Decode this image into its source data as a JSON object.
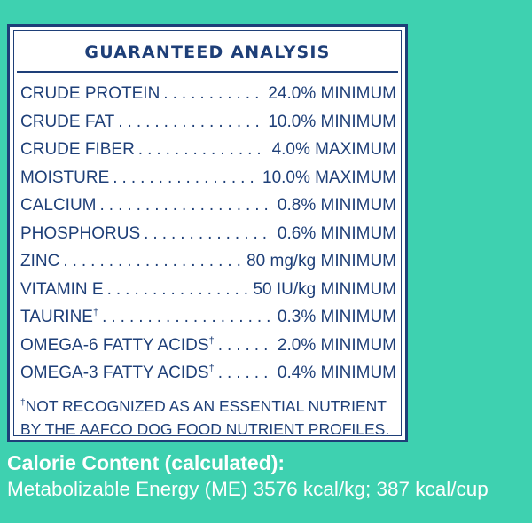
{
  "label": {
    "title": "GUARANTEED ANALYSIS",
    "rows": [
      {
        "name": "CRUDE PROTEIN",
        "mark": "",
        "value": "24.0% MINIMUM"
      },
      {
        "name": "CRUDE FAT",
        "mark": "",
        "value": "10.0% MINIMUM"
      },
      {
        "name": "CRUDE FIBER",
        "mark": "",
        "value": "4.0% MAXIMUM"
      },
      {
        "name": "MOISTURE",
        "mark": "",
        "value": "10.0% MAXIMUM"
      },
      {
        "name": "CALCIUM",
        "mark": "",
        "value": "0.8% MINIMUM"
      },
      {
        "name": "PHOSPHORUS",
        "mark": "",
        "value": "0.6% MINIMUM"
      },
      {
        "name": "ZINC",
        "mark": "",
        "value": "80 mg/kg MINIMUM"
      },
      {
        "name": "VITAMIN E",
        "mark": "",
        "value": "50 IU/kg MINIMUM"
      },
      {
        "name": "TAURINE",
        "mark": "†",
        "value": "0.3% MINIMUM"
      },
      {
        "name": "OMEGA-6 FATTY ACIDS",
        "mark": "†",
        "value": "2.0% MINIMUM"
      },
      {
        "name": "OMEGA-3 FATTY ACIDS",
        "mark": "†",
        "value": "0.4% MINIMUM"
      }
    ],
    "footnote_mark": "†",
    "footnote": "NOT RECOGNIZED AS AN ESSENTIAL NUTRIENT BY THE  AAFCO DOG FOOD NUTRIENT PROFILES."
  },
  "calorie": {
    "heading": "Calorie Content (calculated):",
    "energy": "Metabolizable Energy (ME) 3576 kcal/kg; 387 kcal/cup"
  },
  "colors": {
    "background": "#3ed1b0",
    "label_text": "#1e3f78",
    "panel": "#ffffff"
  }
}
